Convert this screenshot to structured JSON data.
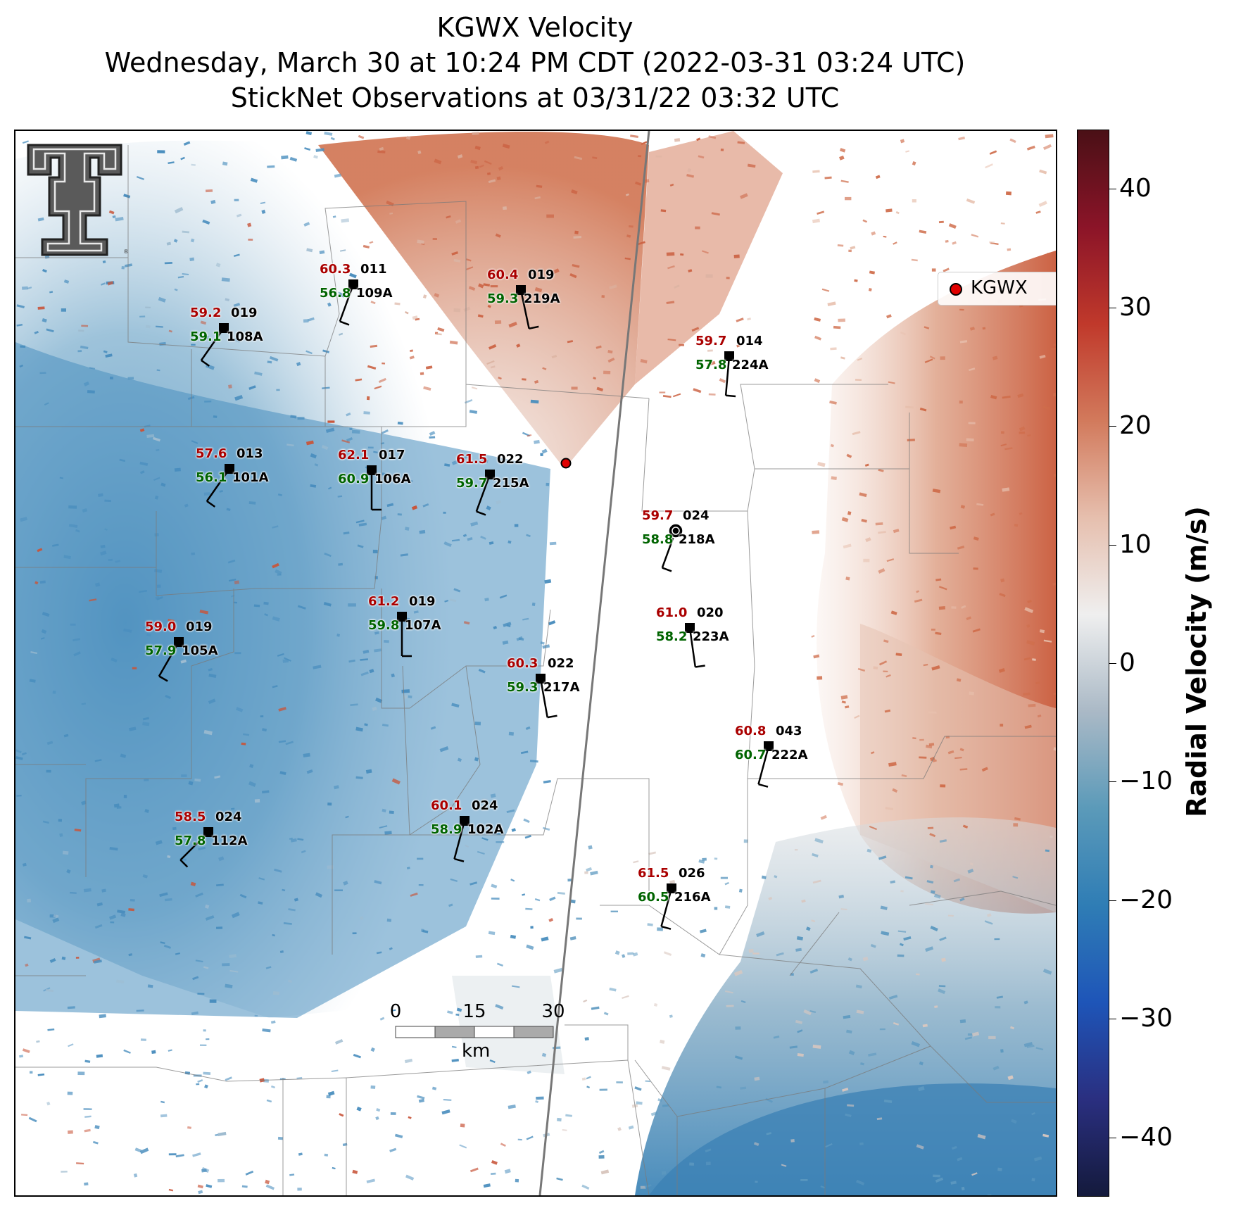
{
  "title": {
    "line1": "KGWX Velocity",
    "line2": "Wednesday, March 30 at 10:24 PM CDT (2022-03-31 03:24 UTC)",
    "line3": "StickNet Observations at 03/31/22 03:32 UTC"
  },
  "legend": {
    "label": "KGWX",
    "marker_color": "#e00000"
  },
  "colorbar": {
    "label": "Radial Velocity (m/s)",
    "min": -45,
    "max": 45,
    "ticks": [
      40,
      30,
      20,
      10,
      0,
      -10,
      -20,
      -30,
      -40
    ],
    "tick_labels": [
      "40",
      "30",
      "20",
      "10",
      "0",
      "−10",
      "−20",
      "−30",
      "−40"
    ],
    "colors": [
      "#4a1016",
      "#8b1428",
      "#c0392b",
      "#d27a5c",
      "#e6bfae",
      "#efefef",
      "#aab9c6",
      "#5b9ab9",
      "#2f7db5",
      "#1e55b8",
      "#2a2f80",
      "#141a3c"
    ]
  },
  "scalebar": {
    "labels": [
      "0",
      "15",
      "30"
    ],
    "unit": "km"
  },
  "observations": [
    {
      "id": "109A",
      "temp": "60.3",
      "dew": "56.8",
      "wind_dir": "011"
    },
    {
      "id": "219A",
      "temp": "60.4",
      "dew": "59.3",
      "wind_dir": "019"
    },
    {
      "id": "108A",
      "temp": "59.2",
      "dew": "59.1",
      "wind_dir": "019"
    },
    {
      "id": "224A",
      "temp": "59.7",
      "dew": "57.8",
      "wind_dir": "014"
    },
    {
      "id": "101A",
      "temp": "57.6",
      "dew": "56.1",
      "wind_dir": "013"
    },
    {
      "id": "106A",
      "temp": "62.1",
      "dew": "60.9",
      "wind_dir": "017"
    },
    {
      "id": "215A",
      "temp": "61.5",
      "dew": "59.7",
      "wind_dir": "022"
    },
    {
      "id": "218A",
      "temp": "59.7",
      "dew": "58.8",
      "wind_dir": "024"
    },
    {
      "id": "107A",
      "temp": "61.2",
      "dew": "59.8",
      "wind_dir": "019"
    },
    {
      "id": "223A",
      "temp": "61.0",
      "dew": "58.2",
      "wind_dir": "020"
    },
    {
      "id": "105A",
      "temp": "59.0",
      "dew": "57.9",
      "wind_dir": "019"
    },
    {
      "id": "217A",
      "temp": "60.3",
      "dew": "59.3",
      "wind_dir": "022"
    },
    {
      "id": "222A",
      "temp": "60.8",
      "dew": "60.7",
      "wind_dir": "043"
    },
    {
      "id": "102A",
      "temp": "60.1",
      "dew": "58.9",
      "wind_dir": "024"
    },
    {
      "id": "112A",
      "temp": "58.5",
      "dew": "57.8",
      "wind_dir": "024"
    },
    {
      "id": "216A",
      "temp": "61.5",
      "dew": "60.5",
      "wind_dir": "026"
    }
  ]
}
